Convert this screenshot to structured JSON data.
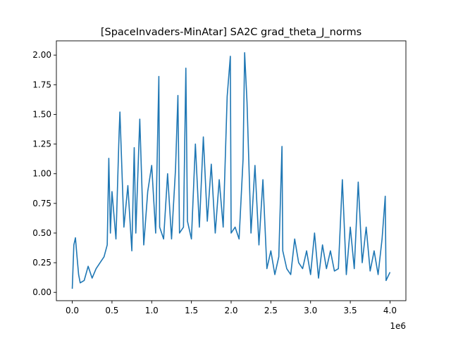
{
  "chart_data": {
    "type": "line",
    "title": "[SpaceInvaders-MinAtar] SA2C grad_theta_J_norms",
    "xlabel": "",
    "ylabel": "",
    "x_offset_label": "1e6",
    "xlim": [
      -200000,
      4200000
    ],
    "ylim": [
      -0.07,
      2.12
    ],
    "x_ticks": [
      0,
      500000,
      1000000,
      1500000,
      2000000,
      2500000,
      3000000,
      3500000,
      4000000
    ],
    "x_tick_labels": [
      "0.0",
      "0.5",
      "1.0",
      "1.5",
      "2.0",
      "2.5",
      "3.0",
      "3.5",
      "4.0"
    ],
    "y_ticks": [
      0,
      0.25,
      0.5,
      0.75,
      1.0,
      1.25,
      1.5,
      1.75,
      2.0
    ],
    "y_tick_labels": [
      "0.00",
      "0.25",
      "0.50",
      "0.75",
      "1.00",
      "1.25",
      "1.50",
      "1.75",
      "2.00"
    ],
    "grid": false,
    "legend": "none",
    "series": [
      {
        "color": "#1f77b4",
        "x": [
          0,
          20000,
          40000,
          60000,
          80000,
          100000,
          150000,
          200000,
          250000,
          300000,
          350000,
          400000,
          440000,
          460000,
          480000,
          500000,
          550000,
          590000,
          600000,
          650000,
          700000,
          750000,
          780000,
          800000,
          850000,
          900000,
          950000,
          1000000,
          1050000,
          1090000,
          1100000,
          1150000,
          1200000,
          1250000,
          1300000,
          1330000,
          1350000,
          1400000,
          1430000,
          1450000,
          1500000,
          1550000,
          1600000,
          1650000,
          1700000,
          1750000,
          1800000,
          1850000,
          1900000,
          1950000,
          1990000,
          2000000,
          2050000,
          2100000,
          2150000,
          2170000,
          2200000,
          2250000,
          2300000,
          2350000,
          2400000,
          2450000,
          2500000,
          2550000,
          2600000,
          2640000,
          2650000,
          2700000,
          2750000,
          2800000,
          2850000,
          2900000,
          2950000,
          3000000,
          3050000,
          3100000,
          3150000,
          3200000,
          3250000,
          3300000,
          3350000,
          3400000,
          3450000,
          3500000,
          3550000,
          3600000,
          3650000,
          3700000,
          3750000,
          3800000,
          3850000,
          3900000,
          3940000,
          3950000,
          4000000
        ],
        "y": [
          0.03,
          0.4,
          0.46,
          0.3,
          0.15,
          0.08,
          0.1,
          0.22,
          0.12,
          0.2,
          0.25,
          0.3,
          0.4,
          1.13,
          0.5,
          0.85,
          0.45,
          1.35,
          1.52,
          0.55,
          0.9,
          0.35,
          1.22,
          0.5,
          1.46,
          0.4,
          0.85,
          1.07,
          0.5,
          1.82,
          0.55,
          0.45,
          1.0,
          0.45,
          1.04,
          1.66,
          0.5,
          0.55,
          1.89,
          0.6,
          0.45,
          1.25,
          0.55,
          1.31,
          0.6,
          1.08,
          0.5,
          0.95,
          0.55,
          1.65,
          1.99,
          0.5,
          0.55,
          0.45,
          1.12,
          2.02,
          1.6,
          0.5,
          1.07,
          0.4,
          0.95,
          0.2,
          0.35,
          0.15,
          0.3,
          1.23,
          0.35,
          0.2,
          0.15,
          0.45,
          0.25,
          0.2,
          0.35,
          0.15,
          0.5,
          0.12,
          0.4,
          0.2,
          0.35,
          0.18,
          0.2,
          0.95,
          0.15,
          0.55,
          0.2,
          0.93,
          0.25,
          0.55,
          0.18,
          0.35,
          0.15,
          0.45,
          0.81,
          0.1,
          0.17
        ]
      }
    ]
  }
}
